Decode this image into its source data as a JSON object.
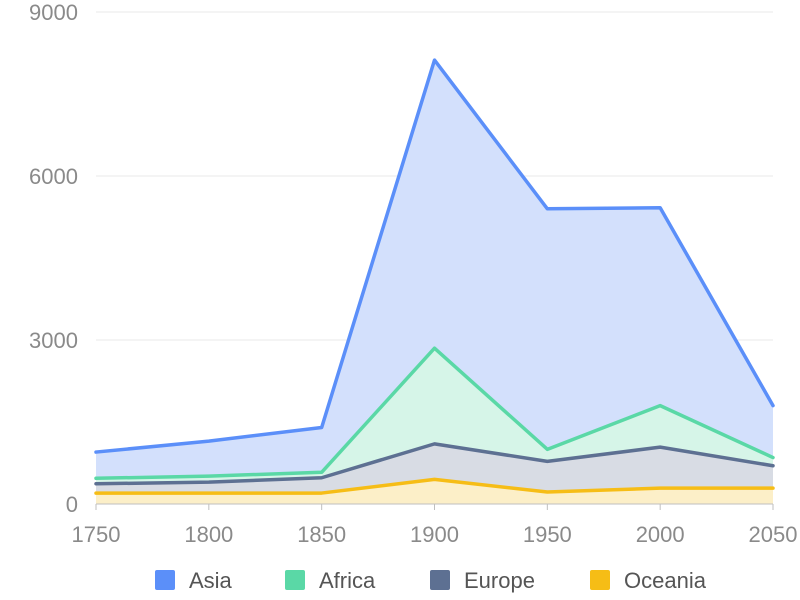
{
  "chart_data": {
    "type": "area",
    "x": [
      1750,
      1800,
      1850,
      1900,
      1950,
      2000,
      2050
    ],
    "x_ticks": [
      "1750",
      "1800",
      "1850",
      "1900",
      "1950",
      "2000",
      "2050"
    ],
    "y_ticks": [
      "0",
      "3000",
      "6000",
      "9000"
    ],
    "ylim": [
      0,
      9000
    ],
    "grid": true,
    "legend_position": "bottom",
    "series": [
      {
        "name": "Asia",
        "values": [
          950,
          1150,
          1400,
          8120,
          5400,
          5420,
          1800
        ],
        "color": "#5B8FF9",
        "fill": "#D3E0FC"
      },
      {
        "name": "Africa",
        "values": [
          470,
          510,
          580,
          2850,
          1000,
          1800,
          850
        ],
        "color": "#5AD8A6",
        "fill": "#D6F5E8"
      },
      {
        "name": "Europe",
        "values": [
          370,
          400,
          480,
          1100,
          780,
          1040,
          700
        ],
        "color": "#5D7092",
        "fill": "#D8DCE4"
      },
      {
        "name": "Oceania",
        "values": [
          200,
          200,
          200,
          450,
          220,
          290,
          290
        ],
        "color": "#F6BD16",
        "fill": "#FCEFC8"
      }
    ]
  }
}
